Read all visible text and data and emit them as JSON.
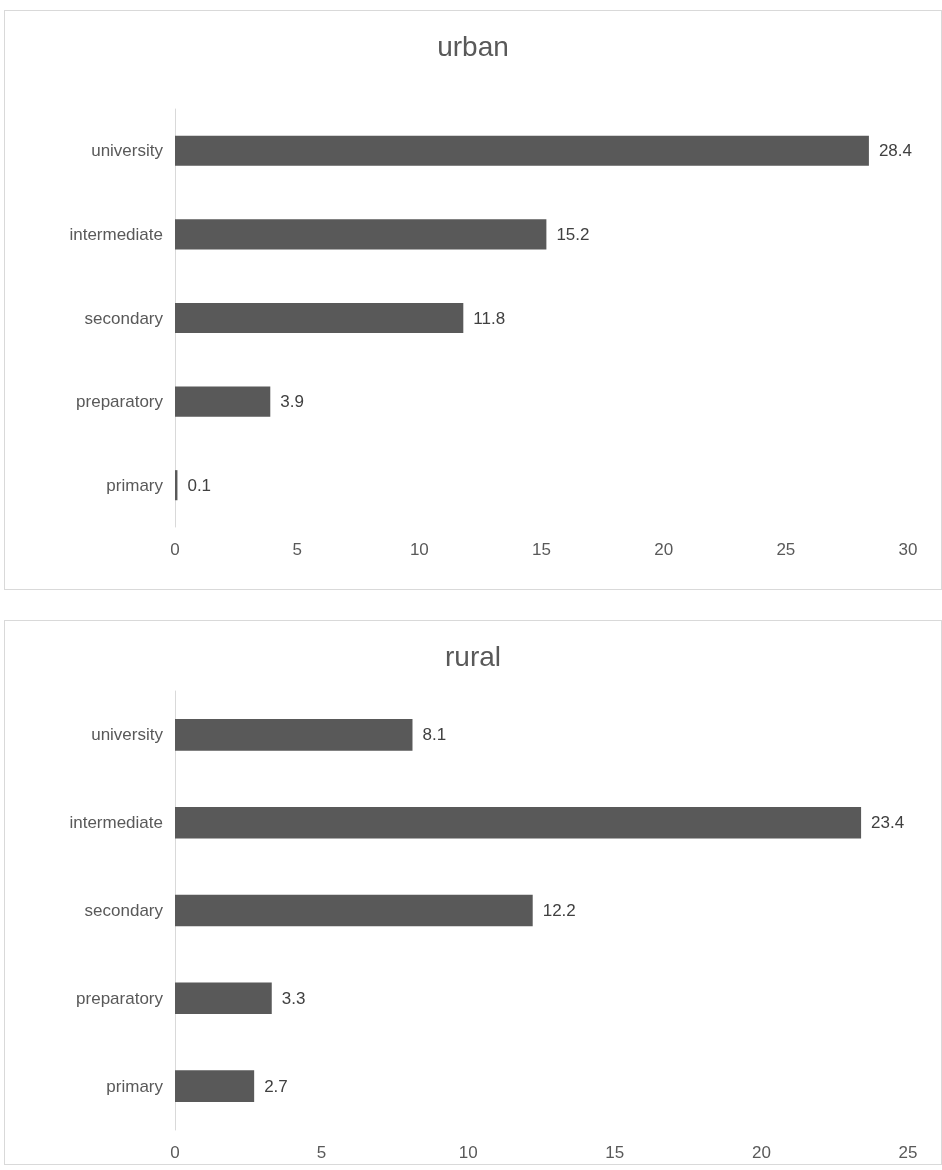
{
  "chart_data": [
    {
      "type": "bar",
      "title": "urban",
      "orientation": "horizontal",
      "categories": [
        "university",
        "intermediate",
        "secondary",
        "preparatory",
        "primary"
      ],
      "values": [
        28.4,
        15.2,
        11.8,
        3.9,
        0.1
      ],
      "color": "#595959",
      "xlim": [
        0,
        30
      ],
      "xticks": [
        0,
        5,
        10,
        15,
        20,
        25,
        30
      ],
      "data_labels": true,
      "grid": false
    },
    {
      "type": "bar",
      "title": "rural",
      "orientation": "horizontal",
      "categories": [
        "university",
        "intermediate",
        "secondary",
        "preparatory",
        "primary"
      ],
      "values": [
        8.1,
        23.4,
        12.2,
        3.3,
        2.7
      ],
      "color": "#595959",
      "xlim": [
        0,
        25
      ],
      "xticks": [
        0,
        5,
        10,
        15,
        20,
        25
      ],
      "data_labels": true,
      "grid": false
    }
  ]
}
